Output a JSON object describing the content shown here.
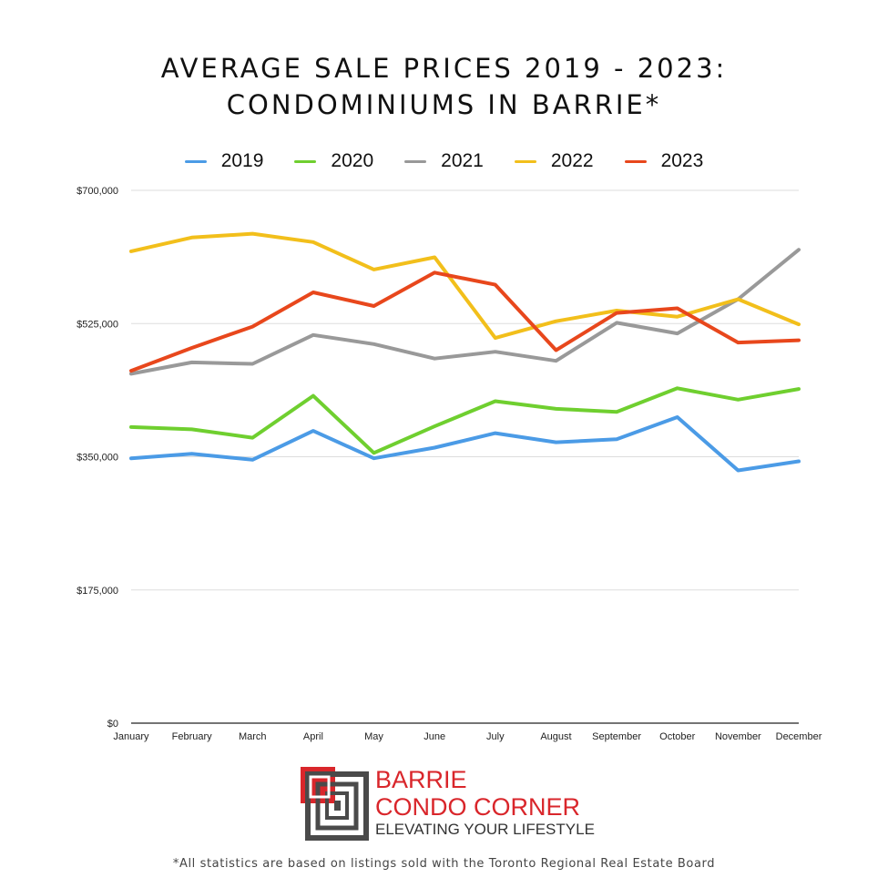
{
  "header": {
    "title_line1": "AVERAGE SALE PRICES 2019 - 2023:",
    "title_line2": "CONDOMINIUMS IN BARRIE*"
  },
  "chart_data": {
    "type": "line",
    "title": "AVERAGE SALE PRICES 2019 - 2023: CONDOMINIUMS IN BARRIE*",
    "categories": [
      "January",
      "February",
      "March",
      "April",
      "May",
      "June",
      "July",
      "August",
      "September",
      "October",
      "November",
      "December"
    ],
    "y_ticks": [
      "$0",
      "$175,000",
      "$350,000",
      "$525,000",
      "$700,000"
    ],
    "ylim": [
      0,
      700000
    ],
    "grid": true,
    "legend_position": "top",
    "series": [
      {
        "name": "2019",
        "color": "#4b9be6",
        "values": [
          348000,
          354000,
          346000,
          384000,
          348000,
          362000,
          381000,
          369000,
          373000,
          402000,
          332000,
          344000
        ]
      },
      {
        "name": "2020",
        "color": "#6fcf2f",
        "values": [
          389000,
          386000,
          375000,
          430000,
          355000,
          390000,
          423000,
          413000,
          409000,
          440000,
          425000,
          439000
        ]
      },
      {
        "name": "2021",
        "color": "#999999",
        "values": [
          459000,
          474000,
          472000,
          510000,
          498000,
          479000,
          488000,
          476000,
          526000,
          512000,
          557000,
          622000
        ]
      },
      {
        "name": "2022",
        "color": "#f2bf1b",
        "values": [
          620000,
          638000,
          643000,
          632000,
          596000,
          612000,
          506000,
          528000,
          542000,
          534000,
          557000,
          524000
        ]
      },
      {
        "name": "2023",
        "color": "#e8471c",
        "values": [
          463000,
          493000,
          521000,
          566000,
          548000,
          592000,
          576000,
          490000,
          539000,
          545000,
          500000,
          503000
        ]
      }
    ]
  },
  "logo": {
    "line1": "BARRIE",
    "line2": "CONDO CORNER",
    "line3": "ELEVATING YOUR LIFESTYLE"
  },
  "footnote": "*All statistics are based on listings sold with the Toronto Regional Real Estate Board"
}
